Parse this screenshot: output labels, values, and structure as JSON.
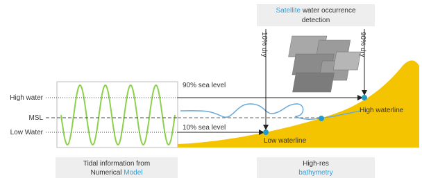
{
  "satellite_box": {
    "highlight": "Satellite",
    "text_line1": "water occurrence",
    "text_line2": "detection"
  },
  "vertical_labels": {
    "left": "10% dry",
    "right": "90% dry"
  },
  "levels": {
    "high": "High water",
    "msl": "MSL",
    "low": "Low Water"
  },
  "sea_levels": {
    "upper": "90% sea level",
    "lower": "10% sea level"
  },
  "waterlines": {
    "high": "High waterline",
    "low": "Low waterline"
  },
  "tidal_box": {
    "line1": "Tidal information from",
    "line2": "Numerical",
    "highlight": "Model"
  },
  "bathymetry_box": {
    "line1": "High-res",
    "highlight": "bathymetry"
  }
}
